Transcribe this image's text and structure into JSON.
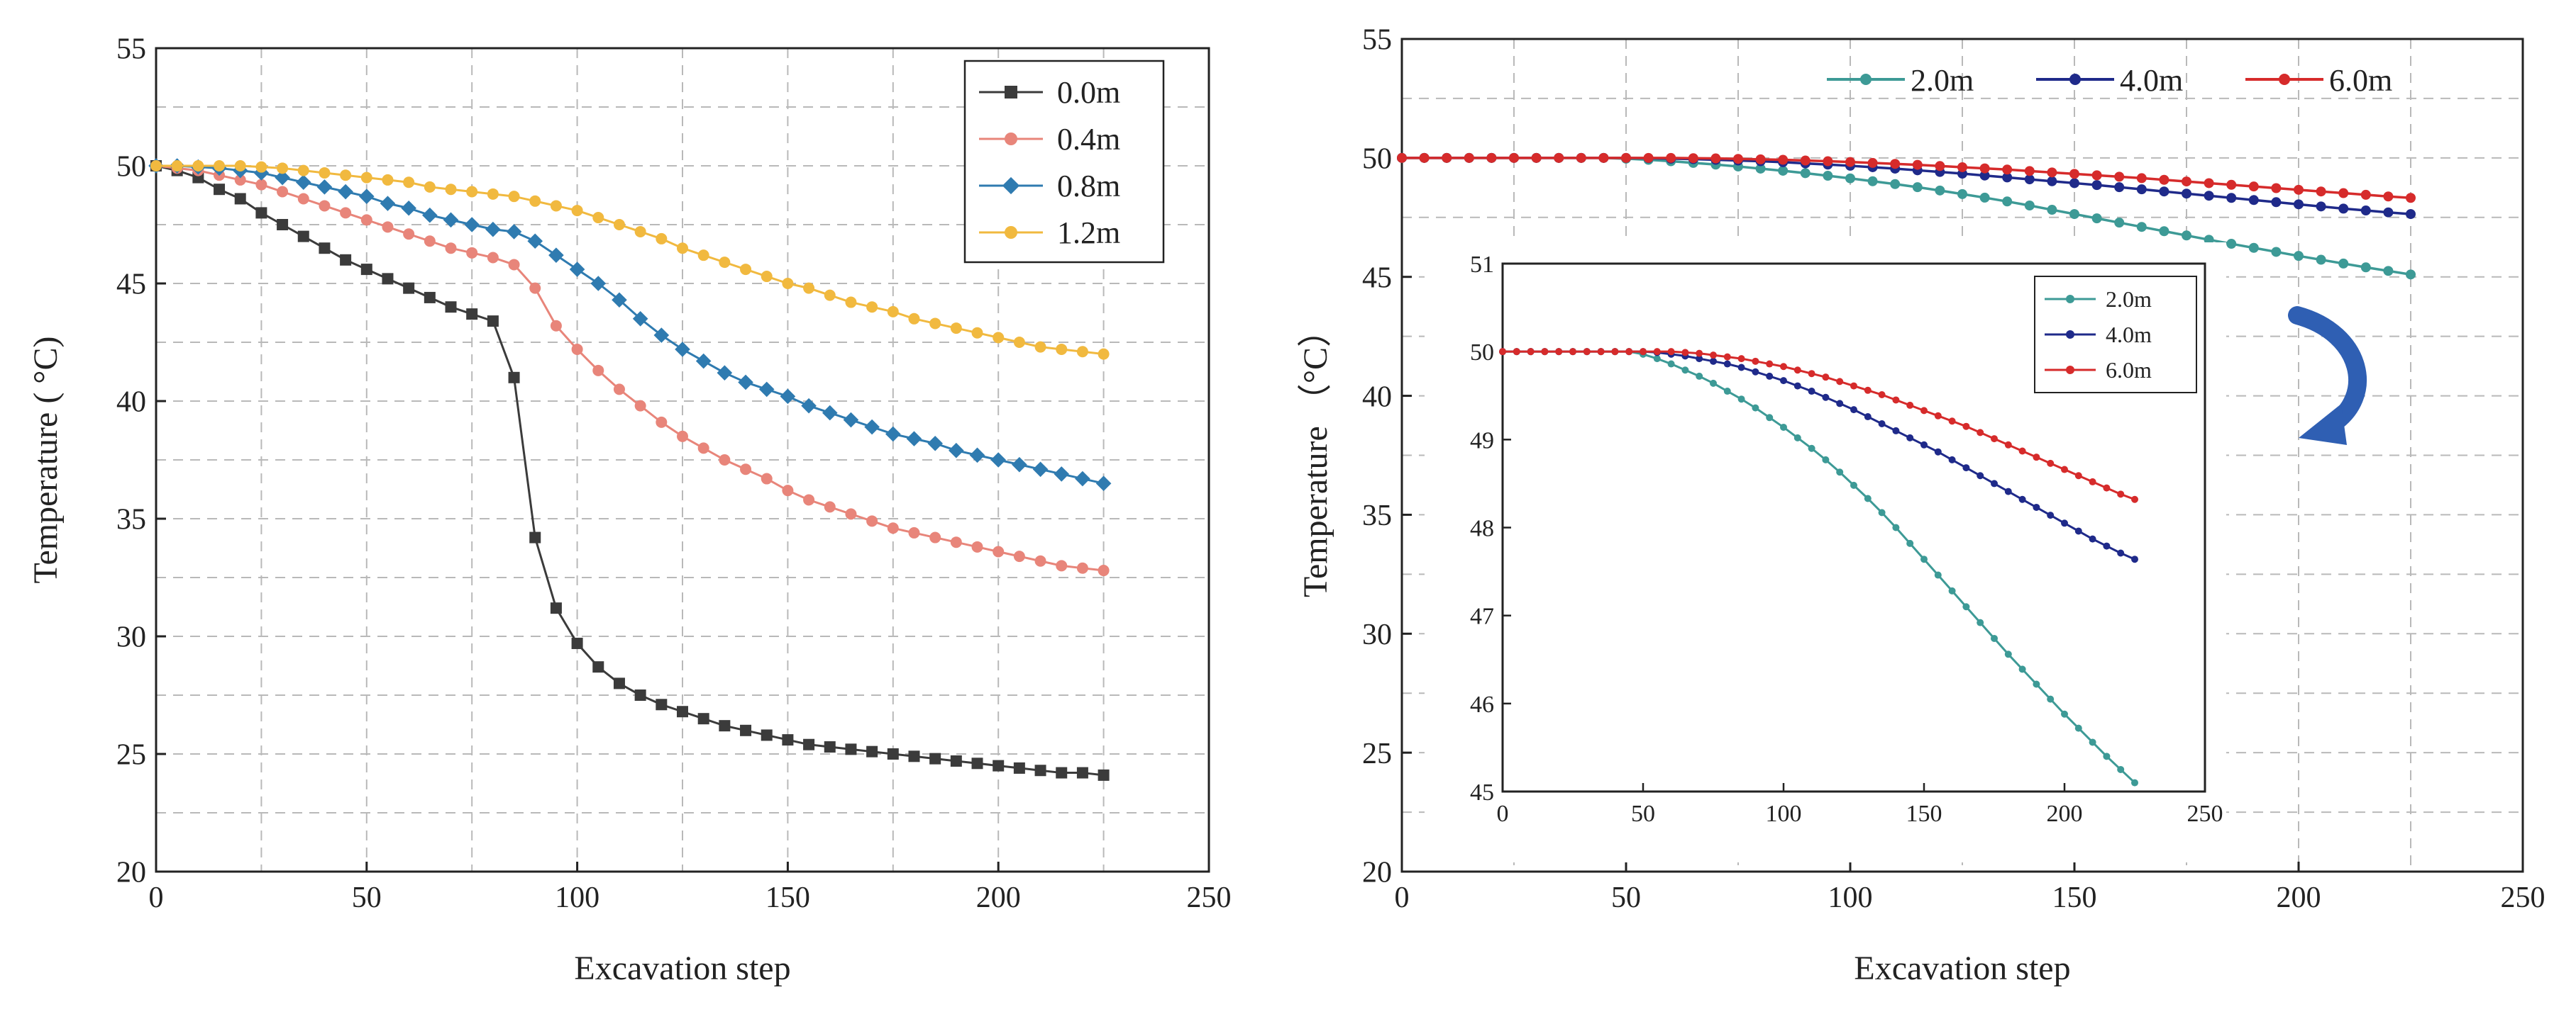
{
  "chart_data": [
    {
      "type": "line",
      "panel": "left",
      "title": "",
      "xlabel": "Excavation step",
      "ylabel": "Temperature ( °C)",
      "xlim": [
        0,
        250
      ],
      "ylim": [
        20,
        55
      ],
      "xticks": [
        0,
        50,
        100,
        150,
        200,
        250
      ],
      "yticks": [
        20,
        25,
        30,
        35,
        40,
        45,
        50,
        55
      ],
      "grid": "dashed",
      "legend": "top-right",
      "series": [
        {
          "name": "0.0m",
          "color": "#3b3b3b",
          "marker": "square",
          "x": [
            0,
            5,
            10,
            15,
            20,
            25,
            30,
            35,
            40,
            45,
            50,
            55,
            60,
            65,
            70,
            75,
            80,
            85,
            90,
            95,
            100,
            105,
            110,
            115,
            120,
            125,
            130,
            135,
            140,
            145,
            150,
            155,
            160,
            165,
            170,
            175,
            180,
            185,
            190,
            195,
            200,
            205,
            210,
            215,
            220,
            225
          ],
          "y": [
            50,
            49.8,
            49.5,
            49,
            48.6,
            48,
            47.5,
            47,
            46.5,
            46,
            45.6,
            45.2,
            44.8,
            44.4,
            44,
            43.7,
            43.4,
            41,
            34.2,
            31.2,
            29.7,
            28.7,
            28,
            27.5,
            27.1,
            26.8,
            26.5,
            26.2,
            26,
            25.8,
            25.6,
            25.4,
            25.3,
            25.2,
            25.1,
            25,
            24.9,
            24.8,
            24.7,
            24.6,
            24.5,
            24.4,
            24.3,
            24.2,
            24.2,
            24.1
          ]
        },
        {
          "name": "0.4m",
          "color": "#e8857a",
          "marker": "circle",
          "x": [
            0,
            5,
            10,
            15,
            20,
            25,
            30,
            35,
            40,
            45,
            50,
            55,
            60,
            65,
            70,
            75,
            80,
            85,
            90,
            95,
            100,
            105,
            110,
            115,
            120,
            125,
            130,
            135,
            140,
            145,
            150,
            155,
            160,
            165,
            170,
            175,
            180,
            185,
            190,
            195,
            200,
            205,
            210,
            215,
            220,
            225
          ],
          "y": [
            50,
            49.9,
            49.8,
            49.6,
            49.4,
            49.2,
            48.9,
            48.6,
            48.3,
            48,
            47.7,
            47.4,
            47.1,
            46.8,
            46.5,
            46.3,
            46.1,
            45.8,
            44.8,
            43.2,
            42.2,
            41.3,
            40.5,
            39.8,
            39.1,
            38.5,
            38,
            37.5,
            37.1,
            36.7,
            36.2,
            35.8,
            35.5,
            35.2,
            34.9,
            34.6,
            34.4,
            34.2,
            34,
            33.8,
            33.6,
            33.4,
            33.2,
            33,
            32.9,
            32.8
          ]
        },
        {
          "name": "0.8m",
          "color": "#2f7bb0",
          "marker": "diamond",
          "x": [
            0,
            5,
            10,
            15,
            20,
            25,
            30,
            35,
            40,
            45,
            50,
            55,
            60,
            65,
            70,
            75,
            80,
            85,
            90,
            95,
            100,
            105,
            110,
            115,
            120,
            125,
            130,
            135,
            140,
            145,
            150,
            155,
            160,
            165,
            170,
            175,
            180,
            185,
            190,
            195,
            200,
            205,
            210,
            215,
            220,
            225
          ],
          "y": [
            50,
            50,
            49.95,
            49.9,
            49.8,
            49.7,
            49.5,
            49.3,
            49.1,
            48.9,
            48.7,
            48.4,
            48.2,
            47.9,
            47.7,
            47.5,
            47.3,
            47.2,
            46.8,
            46.2,
            45.6,
            45,
            44.3,
            43.5,
            42.8,
            42.2,
            41.7,
            41.2,
            40.8,
            40.5,
            40.2,
            39.8,
            39.5,
            39.2,
            38.9,
            38.6,
            38.4,
            38.2,
            37.9,
            37.7,
            37.5,
            37.3,
            37.1,
            36.9,
            36.7,
            36.5
          ]
        },
        {
          "name": "1.2m",
          "color": "#f1b93f",
          "marker": "circle",
          "x": [
            0,
            5,
            10,
            15,
            20,
            25,
            30,
            35,
            40,
            45,
            50,
            55,
            60,
            65,
            70,
            75,
            80,
            85,
            90,
            95,
            100,
            105,
            110,
            115,
            120,
            125,
            130,
            135,
            140,
            145,
            150,
            155,
            160,
            165,
            170,
            175,
            180,
            185,
            190,
            195,
            200,
            205,
            210,
            215,
            220,
            225
          ],
          "y": [
            50,
            50,
            50,
            50,
            50,
            49.95,
            49.9,
            49.8,
            49.7,
            49.6,
            49.5,
            49.4,
            49.3,
            49.1,
            49,
            48.9,
            48.8,
            48.7,
            48.5,
            48.3,
            48.1,
            47.8,
            47.5,
            47.2,
            46.9,
            46.5,
            46.2,
            45.9,
            45.6,
            45.3,
            45,
            44.8,
            44.5,
            44.2,
            44,
            43.8,
            43.5,
            43.3,
            43.1,
            42.9,
            42.7,
            42.5,
            42.3,
            42.2,
            42.1,
            42
          ]
        }
      ]
    },
    {
      "type": "line",
      "panel": "right",
      "title": "",
      "xlabel": "Excavation step",
      "ylabel": "Temperature （°C）",
      "xlim": [
        0,
        250
      ],
      "ylim": [
        20,
        55
      ],
      "xticks": [
        0,
        50,
        100,
        150,
        200,
        250
      ],
      "yticks": [
        20,
        25,
        30,
        35,
        40,
        45,
        50,
        55
      ],
      "grid": "dashed",
      "legend": "top",
      "series": [
        {
          "name": "2.0m",
          "color": "#3d9a96",
          "marker": "circle",
          "x": [
            0,
            5,
            10,
            15,
            20,
            25,
            30,
            35,
            40,
            45,
            50,
            55,
            60,
            65,
            70,
            75,
            80,
            85,
            90,
            95,
            100,
            105,
            110,
            115,
            120,
            125,
            130,
            135,
            140,
            145,
            150,
            155,
            160,
            165,
            170,
            175,
            180,
            185,
            190,
            195,
            200,
            205,
            210,
            215,
            220,
            225
          ],
          "y": [
            50,
            50,
            50,
            50,
            50,
            50,
            50,
            50,
            50,
            50,
            49.97,
            49.92,
            49.86,
            49.79,
            49.72,
            49.64,
            49.55,
            49.46,
            49.36,
            49.25,
            49.14,
            49.02,
            48.9,
            48.77,
            48.63,
            48.48,
            48.33,
            48.17,
            48,
            47.82,
            47.64,
            47.46,
            47.28,
            47.1,
            46.92,
            46.74,
            46.56,
            46.39,
            46.22,
            46.05,
            45.88,
            45.72,
            45.56,
            45.4,
            45.25,
            45.1
          ]
        },
        {
          "name": "4.0m",
          "color": "#1f2a8a",
          "marker": "circle",
          "x": [
            0,
            5,
            10,
            15,
            20,
            25,
            30,
            35,
            40,
            45,
            50,
            55,
            60,
            65,
            70,
            75,
            80,
            85,
            90,
            95,
            100,
            105,
            110,
            115,
            120,
            125,
            130,
            135,
            140,
            145,
            150,
            155,
            160,
            165,
            170,
            175,
            180,
            185,
            190,
            195,
            200,
            205,
            210,
            215,
            220,
            225
          ],
          "y": [
            50,
            50,
            50,
            50,
            50,
            50,
            50,
            50,
            50,
            50,
            50,
            49.99,
            49.97,
            49.95,
            49.92,
            49.89,
            49.86,
            49.82,
            49.77,
            49.72,
            49.67,
            49.61,
            49.55,
            49.48,
            49.41,
            49.34,
            49.26,
            49.18,
            49.1,
            49.02,
            48.94,
            48.86,
            48.77,
            48.68,
            48.59,
            48.5,
            48.41,
            48.32,
            48.23,
            48.14,
            48.05,
            47.96,
            47.87,
            47.79,
            47.71,
            47.64
          ]
        },
        {
          "name": "6.0m",
          "color": "#d62b2b",
          "marker": "circle",
          "x": [
            0,
            5,
            10,
            15,
            20,
            25,
            30,
            35,
            40,
            45,
            50,
            55,
            60,
            65,
            70,
            75,
            80,
            85,
            90,
            95,
            100,
            105,
            110,
            115,
            120,
            125,
            130,
            135,
            140,
            145,
            150,
            155,
            160,
            165,
            170,
            175,
            180,
            185,
            190,
            195,
            200,
            205,
            210,
            215,
            220,
            225
          ],
          "y": [
            50,
            50,
            50,
            50,
            50,
            50,
            50,
            50,
            50,
            50,
            50,
            50,
            50,
            49.99,
            49.98,
            49.96,
            49.94,
            49.92,
            49.89,
            49.86,
            49.83,
            49.79,
            49.75,
            49.71,
            49.66,
            49.61,
            49.56,
            49.51,
            49.45,
            49.39,
            49.33,
            49.27,
            49.21,
            49.15,
            49.08,
            49.01,
            48.94,
            48.87,
            48.8,
            48.73,
            48.66,
            48.59,
            48.52,
            48.45,
            48.38,
            48.32
          ]
        }
      ],
      "inset": {
        "xlim": [
          0,
          250
        ],
        "ylim": [
          45,
          51
        ],
        "xticks": [
          0,
          50,
          100,
          150,
          200,
          250
        ],
        "yticks": [
          45,
          46,
          47,
          48,
          49,
          50,
          51
        ],
        "legend": "top-right",
        "series": [
          {
            "name": "2.0m",
            "color": "#3d9a96",
            "x": [
              0,
              5,
              10,
              15,
              20,
              25,
              30,
              35,
              40,
              45,
              50,
              55,
              60,
              65,
              70,
              75,
              80,
              85,
              90,
              95,
              100,
              105,
              110,
              115,
              120,
              125,
              130,
              135,
              140,
              145,
              150,
              155,
              160,
              165,
              170,
              175,
              180,
              185,
              190,
              195,
              200,
              205,
              210,
              215,
              220,
              225
            ],
            "y": [
              50,
              50,
              50,
              50,
              50,
              50,
              50,
              50,
              50,
              50,
              49.97,
              49.92,
              49.86,
              49.79,
              49.72,
              49.64,
              49.55,
              49.46,
              49.36,
              49.25,
              49.14,
              49.02,
              48.9,
              48.77,
              48.63,
              48.48,
              48.33,
              48.17,
              48,
              47.82,
              47.64,
              47.46,
              47.28,
              47.1,
              46.92,
              46.74,
              46.56,
              46.39,
              46.22,
              46.05,
              45.88,
              45.72,
              45.56,
              45.4,
              45.25,
              45.1
            ]
          },
          {
            "name": "4.0m",
            "color": "#1f2a8a",
            "x": [
              0,
              5,
              10,
              15,
              20,
              25,
              30,
              35,
              40,
              45,
              50,
              55,
              60,
              65,
              70,
              75,
              80,
              85,
              90,
              95,
              100,
              105,
              110,
              115,
              120,
              125,
              130,
              135,
              140,
              145,
              150,
              155,
              160,
              165,
              170,
              175,
              180,
              185,
              190,
              195,
              200,
              205,
              210,
              215,
              220,
              225
            ],
            "y": [
              50,
              50,
              50,
              50,
              50,
              50,
              50,
              50,
              50,
              50,
              50,
              49.99,
              49.97,
              49.95,
              49.92,
              49.89,
              49.86,
              49.82,
              49.77,
              49.72,
              49.67,
              49.61,
              49.55,
              49.48,
              49.41,
              49.34,
              49.26,
              49.18,
              49.1,
              49.02,
              48.94,
              48.86,
              48.77,
              48.68,
              48.59,
              48.5,
              48.41,
              48.32,
              48.23,
              48.14,
              48.05,
              47.96,
              47.87,
              47.79,
              47.71,
              47.64
            ]
          },
          {
            "name": "6.0m",
            "color": "#d62b2b",
            "x": [
              0,
              5,
              10,
              15,
              20,
              25,
              30,
              35,
              40,
              45,
              50,
              55,
              60,
              65,
              70,
              75,
              80,
              85,
              90,
              95,
              100,
              105,
              110,
              115,
              120,
              125,
              130,
              135,
              140,
              145,
              150,
              155,
              160,
              165,
              170,
              175,
              180,
              185,
              190,
              195,
              200,
              205,
              210,
              215,
              220,
              225
            ],
            "y": [
              50,
              50,
              50,
              50,
              50,
              50,
              50,
              50,
              50,
              50,
              50,
              50,
              50,
              49.99,
              49.98,
              49.96,
              49.94,
              49.92,
              49.89,
              49.86,
              49.83,
              49.79,
              49.75,
              49.71,
              49.66,
              49.61,
              49.56,
              49.51,
              49.45,
              49.39,
              49.33,
              49.27,
              49.21,
              49.15,
              49.08,
              49.01,
              48.94,
              48.87,
              48.8,
              48.73,
              48.66,
              48.59,
              48.52,
              48.45,
              48.38,
              48.32
            ]
          }
        ]
      },
      "annotation_arrow_color": "#2f5fb3"
    }
  ]
}
